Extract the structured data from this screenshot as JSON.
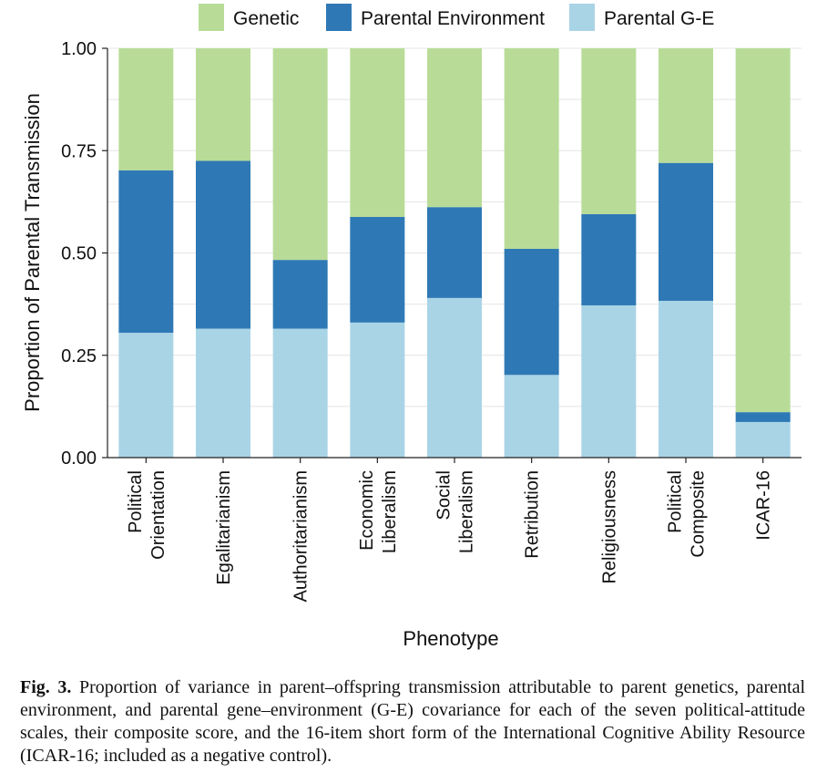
{
  "chart_data": {
    "type": "bar",
    "stacked": true,
    "title": "",
    "xlabel": "Phenotype",
    "ylabel": "Proportion of Parental Transmission",
    "ylim": [
      0,
      1
    ],
    "yticks": [
      "0.00",
      "0.25",
      "0.50",
      "0.75",
      "1.00"
    ],
    "ytick_values": [
      0,
      0.25,
      0.5,
      0.75,
      1.0
    ],
    "grid": true,
    "legend_position": "top",
    "categories": [
      [
        "Political",
        "Orientation"
      ],
      [
        "Egalitarianism"
      ],
      [
        "Authoritarianism"
      ],
      [
        "Economic",
        "Liberalism"
      ],
      [
        "Social",
        "Liberalism"
      ],
      [
        "Retribution"
      ],
      [
        "Religiousness"
      ],
      [
        "Political",
        "Composite"
      ],
      [
        "ICAR-16"
      ]
    ],
    "series": [
      {
        "name": "Parental G-E",
        "color": "#a9d4e6",
        "values": [
          0.305,
          0.315,
          0.315,
          0.33,
          0.39,
          0.202,
          0.372,
          0.383,
          0.087
        ]
      },
      {
        "name": "Parental Environment",
        "color": "#2e79b5",
        "values": [
          0.397,
          0.41,
          0.168,
          0.258,
          0.222,
          0.308,
          0.223,
          0.337,
          0.024
        ]
      },
      {
        "name": "Genetic",
        "color": "#b8dc97",
        "values": [
          0.298,
          0.275,
          0.517,
          0.412,
          0.388,
          0.49,
          0.405,
          0.28,
          0.889
        ]
      }
    ],
    "legend_order": [
      "Genetic",
      "Parental Environment",
      "Parental G-E"
    ]
  },
  "caption": {
    "label": "Fig. 3.",
    "text": "Proportion of variance in parent–offspring transmission attributable to parent genetics, parental environment, and parental gene–environment (G-E) covariance for each of the seven political-attitude scales, their composite score, and the 16-item short form of the International Cognitive Ability Resource (ICAR-16; included as a negative control)."
  }
}
